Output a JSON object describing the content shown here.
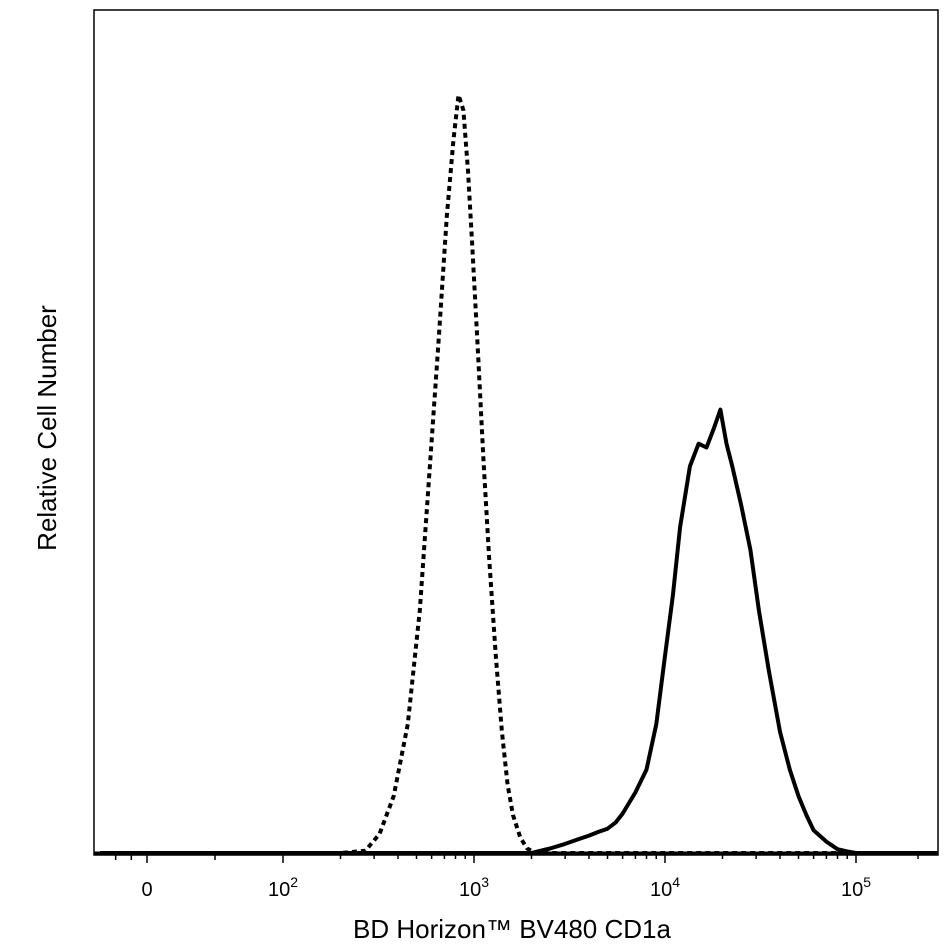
{
  "chart_data": {
    "type": "line",
    "title": "",
    "xlabel": "BD Horizon™ BV480 CD1a",
    "ylabel": "Relative Cell Number",
    "x_scale": "biexponential (log above 10^2, linear near 0)",
    "y_scale": "linear, unlabeled",
    "grid": false,
    "legend": "none",
    "x_ticks": [
      {
        "value": 0,
        "label": "0",
        "sup": ""
      },
      {
        "value": 100,
        "label": "10",
        "sup": "2"
      },
      {
        "value": 1000,
        "label": "10",
        "sup": "3"
      },
      {
        "value": 10000,
        "label": "10",
        "sup": "4"
      },
      {
        "value": 100000,
        "label": "10",
        "sup": "5"
      }
    ],
    "xlim": [
      -300,
      250000
    ],
    "ylim": [
      0,
      100
    ],
    "series": [
      {
        "line_style": "dotted",
        "color": "#000000",
        "x": [
          -300,
          200,
          270,
          320,
          380,
          450,
          520,
          580,
          650,
          720,
          780,
          830,
          880,
          930,
          980,
          1050,
          1120,
          1200,
          1300,
          1400,
          1500,
          1600,
          1750,
          1900,
          2100,
          3000,
          10000,
          100000,
          250000
        ],
        "y": [
          0,
          0,
          0.3,
          2.5,
          7.5,
          17,
          32,
          49,
          67,
          84,
          94,
          100,
          98,
          90,
          80,
          66,
          52,
          39,
          26,
          16,
          9,
          5,
          2,
          0.6,
          0,
          0,
          0,
          0,
          0
        ]
      },
      {
        "line_style": "solid",
        "color": "#000000",
        "x": [
          -300,
          2000,
          2500,
          3000,
          3500,
          4000,
          4500,
          5000,
          5500,
          6000,
          7000,
          8000,
          9000,
          10000,
          11000,
          12000,
          13500,
          15000,
          16500,
          18000,
          19500,
          21000,
          22500,
          25000,
          28000,
          31000,
          35000,
          40000,
          45000,
          50000,
          55000,
          60000,
          70000,
          80000,
          90000,
          100000,
          120000,
          140000,
          170000,
          250000
        ],
        "y": [
          0,
          0,
          0.6,
          1.2,
          1.8,
          2.3,
          2.8,
          3.2,
          4.0,
          5.2,
          8,
          11,
          17,
          26,
          34,
          43,
          51,
          54,
          53.5,
          56,
          58.5,
          54,
          51,
          46,
          40,
          32,
          24,
          16,
          11,
          7.5,
          5,
          3,
          1.5,
          0.5,
          0.2,
          0,
          0,
          0,
          0,
          0
        ]
      }
    ]
  }
}
